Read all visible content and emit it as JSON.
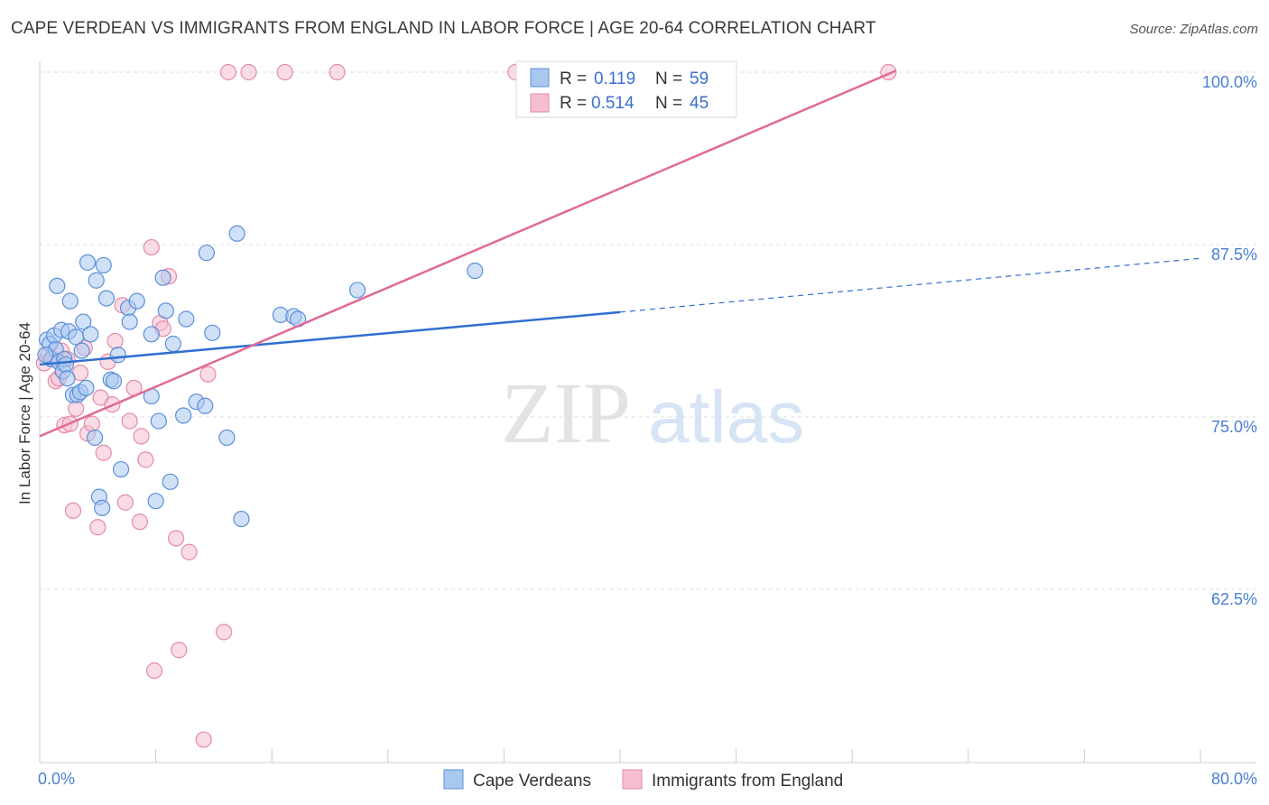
{
  "title": "CAPE VERDEAN VS IMMIGRANTS FROM ENGLAND IN LABOR FORCE | AGE 20-64 CORRELATION CHART",
  "source": "Source: ZipAtlas.com",
  "watermark": {
    "zip": "ZIP",
    "atlas": "atlas"
  },
  "colors": {
    "blue_fill": "#a9c8f0",
    "blue_stroke": "#5b8fd9",
    "blue_line": "#2f6fd0",
    "pink_fill": "#f6bfd0",
    "pink_stroke": "#e58aa8",
    "pink_line": "#e06a95",
    "grid": "#dddddd",
    "axis_text": "#4a7fd4"
  },
  "chart_data": {
    "type": "scatter",
    "title": "CAPE VERDEAN VS IMMIGRANTS FROM ENGLAND IN LABOR FORCE | AGE 20-64 CORRELATION CHART",
    "xlabel": "",
    "ylabel": "In Labor Force | Age 20-64",
    "xlim": [
      0,
      80
    ],
    "ylim": [
      50,
      102
    ],
    "x_tick_labels": [
      "0.0%",
      "80.0%"
    ],
    "y_ticks": [
      62.5,
      75.0,
      87.5,
      100.0
    ],
    "y_tick_labels": [
      "62.5%",
      "75.0%",
      "87.5%",
      "100.0%"
    ],
    "legend": {
      "entries": [
        {
          "r_label": "R =",
          "r": "0.119",
          "n_label": "N =",
          "n": "59"
        },
        {
          "r_label": "R =",
          "r": "0.514",
          "n_label": "N =",
          "n": "45"
        }
      ]
    },
    "series": [
      {
        "name": "Cape Verdeans",
        "color": "blue",
        "trend": {
          "x0": 0,
          "y0": 78.8,
          "x1": 40,
          "y1": 82.6,
          "dashed_to_x": 80,
          "dashed_to_y": 86.5
        },
        "points": [
          [
            0.5,
            80.6
          ],
          [
            0.7,
            80.3
          ],
          [
            0.8,
            79.2
          ],
          [
            1.0,
            80.9
          ],
          [
            1.1,
            79.9
          ],
          [
            1.2,
            84.5
          ],
          [
            1.3,
            79.0
          ],
          [
            1.5,
            81.3
          ],
          [
            1.6,
            78.3
          ],
          [
            1.7,
            79.2
          ],
          [
            1.8,
            78.8
          ],
          [
            2.0,
            81.2
          ],
          [
            2.1,
            83.4
          ],
          [
            2.3,
            76.6
          ],
          [
            2.5,
            80.8
          ],
          [
            2.6,
            76.6
          ],
          [
            2.8,
            76.8
          ],
          [
            2.9,
            79.8
          ],
          [
            3.0,
            81.9
          ],
          [
            3.2,
            77.1
          ],
          [
            3.3,
            86.2
          ],
          [
            3.5,
            81.0
          ],
          [
            3.8,
            73.5
          ],
          [
            3.9,
            84.9
          ],
          [
            4.1,
            69.2
          ],
          [
            4.3,
            68.4
          ],
          [
            4.4,
            86.0
          ],
          [
            4.6,
            83.6
          ],
          [
            4.9,
            77.7
          ],
          [
            5.1,
            77.6
          ],
          [
            5.4,
            79.5
          ],
          [
            5.6,
            71.2
          ],
          [
            6.1,
            82.9
          ],
          [
            6.2,
            81.9
          ],
          [
            6.7,
            83.4
          ],
          [
            7.7,
            81.0
          ],
          [
            7.7,
            76.5
          ],
          [
            8.0,
            68.9
          ],
          [
            8.2,
            74.7
          ],
          [
            8.5,
            85.1
          ],
          [
            8.7,
            82.7
          ],
          [
            9.0,
            70.3
          ],
          [
            9.2,
            80.3
          ],
          [
            9.9,
            75.1
          ],
          [
            10.1,
            82.1
          ],
          [
            10.8,
            76.1
          ],
          [
            11.4,
            75.8
          ],
          [
            11.5,
            86.9
          ],
          [
            11.9,
            81.1
          ],
          [
            12.9,
            73.5
          ],
          [
            13.6,
            88.3
          ],
          [
            13.9,
            67.6
          ],
          [
            16.6,
            82.4
          ],
          [
            17.5,
            82.3
          ],
          [
            17.8,
            82.1
          ],
          [
            21.9,
            84.2
          ],
          [
            30.0,
            85.6
          ],
          [
            0.4,
            79.5
          ],
          [
            1.9,
            77.8
          ]
        ]
      },
      {
        "name": "Immigrants from England",
        "color": "pink",
        "trend": {
          "x0": 0,
          "y0": 73.6,
          "x1": 59,
          "y1": 100.1
        },
        "points": [
          [
            0.3,
            78.9
          ],
          [
            0.6,
            79.5
          ],
          [
            0.9,
            79.2
          ],
          [
            1.1,
            77.6
          ],
          [
            1.3,
            77.8
          ],
          [
            1.5,
            79.8
          ],
          [
            1.7,
            74.4
          ],
          [
            1.9,
            79.2
          ],
          [
            2.1,
            74.5
          ],
          [
            2.3,
            68.2
          ],
          [
            2.5,
            75.6
          ],
          [
            2.8,
            78.2
          ],
          [
            3.1,
            80.0
          ],
          [
            3.3,
            73.8
          ],
          [
            3.6,
            74.5
          ],
          [
            4.0,
            67.0
          ],
          [
            4.2,
            76.4
          ],
          [
            4.4,
            72.4
          ],
          [
            4.7,
            79.0
          ],
          [
            5.0,
            75.9
          ],
          [
            5.2,
            80.5
          ],
          [
            5.7,
            83.1
          ],
          [
            5.9,
            68.8
          ],
          [
            6.2,
            74.7
          ],
          [
            6.5,
            77.1
          ],
          [
            6.9,
            67.4
          ],
          [
            7.0,
            73.6
          ],
          [
            7.3,
            71.9
          ],
          [
            7.7,
            87.3
          ],
          [
            7.9,
            56.6
          ],
          [
            8.3,
            81.8
          ],
          [
            8.5,
            81.4
          ],
          [
            8.9,
            85.2
          ],
          [
            9.4,
            66.2
          ],
          [
            9.6,
            58.1
          ],
          [
            10.3,
            65.2
          ],
          [
            11.3,
            51.6
          ],
          [
            11.6,
            78.1
          ],
          [
            12.7,
            59.4
          ],
          [
            13.0,
            100.0
          ],
          [
            14.4,
            100.0
          ],
          [
            16.9,
            100.0
          ],
          [
            20.5,
            100.0
          ],
          [
            32.8,
            100.0
          ],
          [
            58.5,
            100.0
          ]
        ]
      }
    ]
  },
  "bottom_legend": [
    {
      "label": "Cape Verdeans"
    },
    {
      "label": "Immigrants from England"
    }
  ]
}
